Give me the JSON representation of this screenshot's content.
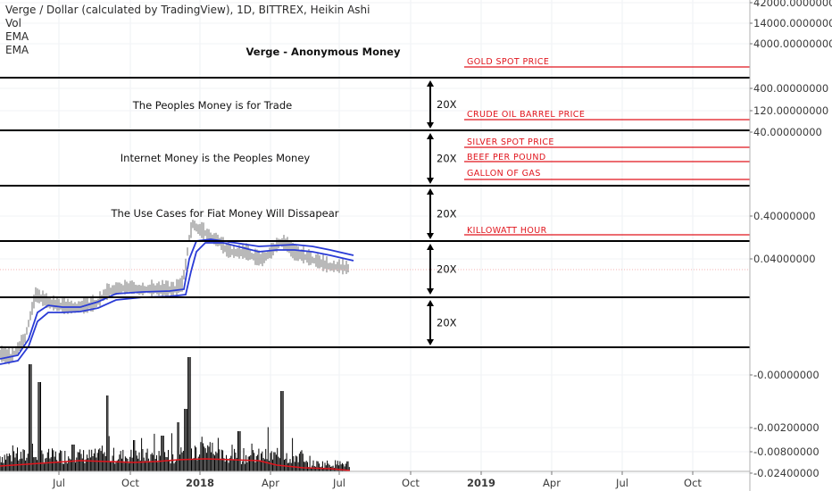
{
  "header": {
    "symbol_line": "Verge / Dollar (calculated by TradingView), 1D, BITTREX, Heikin Ashi",
    "indicators": [
      "Vol",
      "EMA",
      "EMA"
    ]
  },
  "chart_data": {
    "type": "line",
    "title": "Verge - Anonymous Money",
    "y_axis_labels": [
      {
        "label": "42000.00000000",
        "value": 42000
      },
      {
        "label": "14000.00000000",
        "value": 14000
      },
      {
        "label": "4000.00000000",
        "value": 4000
      },
      {
        "label": "400.00000000",
        "value": 400
      },
      {
        "label": "120.00000000",
        "value": 120
      },
      {
        "label": "40.00000000",
        "value": 40
      },
      {
        "label": "0.40000000",
        "value": 0.4
      },
      {
        "label": "0.04000000",
        "value": 0.04
      },
      {
        "label": "-0.00000000",
        "value": 0
      },
      {
        "label": "-0.00200000",
        "value": -0.002
      },
      {
        "label": "-0.00800000",
        "value": -0.008
      },
      {
        "label": "-0.02400000",
        "value": -0.024
      }
    ],
    "x_axis_labels": [
      "Jul",
      "Oct",
      "2018",
      "Apr",
      "Jul",
      "Oct",
      "2019",
      "Apr",
      "Jul",
      "Oct"
    ],
    "price_levels": [
      {
        "value": "800.00000000",
        "style": "black"
      },
      {
        "value": "40.00000000",
        "style": "black"
      },
      {
        "value": "2.00000000",
        "style": "black"
      },
      {
        "value": "0.10000000",
        "style": "black"
      },
      {
        "value": "0.00500000",
        "style": "black"
      },
      {
        "value": "0.00025000",
        "style": "black"
      }
    ],
    "red_levels": [
      {
        "label": "GOLD SPOT PRICE",
        "value": "1242.00000000"
      },
      {
        "label": "CRUDE OIL BARREL PRICE",
        "value": "71.50000000"
      },
      {
        "label": "SILVER SPOT PRICE",
        "value": "15.85000000"
      },
      {
        "label": "BEEF PER POUND",
        "value": "7.52000000"
      },
      {
        "label": "GALLON OF GAS",
        "value": "2.93000000"
      },
      {
        "label": "KILLOWATT HOUR",
        "value": "0.15000000"
      }
    ],
    "current_prices": [
      "0.02206406",
      "0.02195976"
    ],
    "zone_texts": [
      "The Peoples Money is for Trade",
      "Internet Money is the Peoples Money",
      "The Use Cases for Fiat Money Will Dissapear"
    ],
    "multiplier_label": "20X",
    "colors": {
      "ema": "#2a3bd6",
      "volume": "#000000",
      "volume_ema": "#e0141c",
      "red": "#e0141c",
      "level": "#000000",
      "price": "#8a8a8a"
    }
  }
}
